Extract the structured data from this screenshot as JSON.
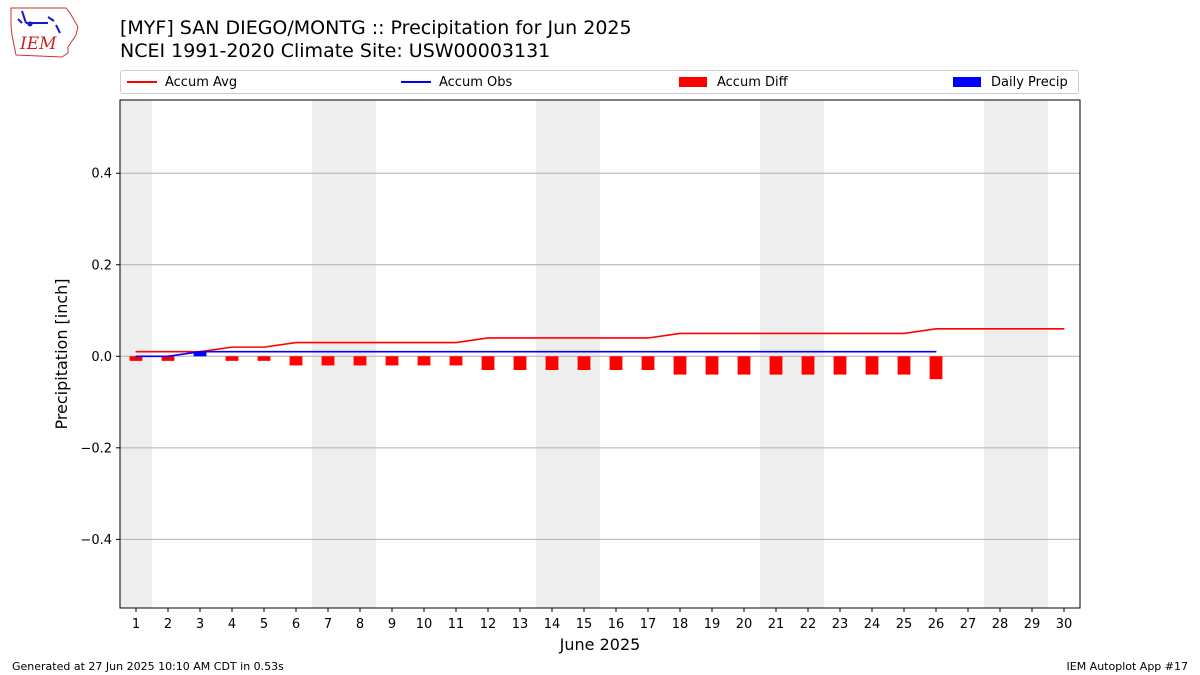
{
  "header": {
    "title_line1": "[MYF] SAN DIEGO/MONTG :: Precipitation for Jun 2025",
    "title_line2": "NCEI 1991-2020 Climate Site: USW00003131",
    "logo_text": "IEM"
  },
  "footer": {
    "generated": "Generated at 27 Jun 2025 10:10 AM CDT in 0.53s",
    "app": "IEM Autoplot App #17"
  },
  "colors": {
    "accum_avg": "#ff0000",
    "accum_obs": "#0000ff",
    "accum_diff": "#ff0000",
    "daily_precip": "#0000ff",
    "weekend": "#eeeeee",
    "grid": "#b0b0b0"
  },
  "legend": [
    {
      "label": "Accum Avg",
      "kind": "line",
      "color": "#ff0000"
    },
    {
      "label": "Accum Obs",
      "kind": "line",
      "color": "#0000ff"
    },
    {
      "label": "Accum Diff",
      "kind": "box",
      "color": "#ff0000"
    },
    {
      "label": "Daily Precip",
      "kind": "box",
      "color": "#0000ff"
    }
  ],
  "chart_data": {
    "type": "bar",
    "xlabel": "June 2025",
    "ylabel": "Precipitation [inch]",
    "xlim": [
      0.5,
      30.5
    ],
    "ylim": [
      -0.55,
      0.56
    ],
    "xticks": [
      1,
      2,
      3,
      4,
      5,
      6,
      7,
      8,
      9,
      10,
      11,
      12,
      13,
      14,
      15,
      16,
      17,
      18,
      19,
      20,
      21,
      22,
      23,
      24,
      25,
      26,
      27,
      28,
      29,
      30
    ],
    "yticks": [
      -0.4,
      -0.2,
      0.0,
      0.2,
      0.4
    ],
    "ytick_labels": [
      "−0.4",
      "−0.2",
      "0.0",
      "0.2",
      "0.4"
    ],
    "grid": "horizontal",
    "legend_position": "top",
    "weekend_shading": [
      [
        0.5,
        1.5
      ],
      [
        6.5,
        8.5
      ],
      [
        13.5,
        15.5
      ],
      [
        20.5,
        22.5
      ],
      [
        27.5,
        29.5
      ]
    ],
    "series": [
      {
        "name": "Accum Avg",
        "type": "line",
        "x": [
          1,
          2,
          3,
          4,
          5,
          6,
          7,
          8,
          9,
          10,
          11,
          12,
          13,
          14,
          15,
          16,
          17,
          18,
          19,
          20,
          21,
          22,
          23,
          24,
          25,
          26,
          27,
          28,
          29,
          30
        ],
        "values": [
          0.01,
          0.01,
          0.01,
          0.02,
          0.02,
          0.03,
          0.03,
          0.03,
          0.03,
          0.03,
          0.03,
          0.04,
          0.04,
          0.04,
          0.04,
          0.04,
          0.04,
          0.05,
          0.05,
          0.05,
          0.05,
          0.05,
          0.05,
          0.05,
          0.05,
          0.06,
          0.06,
          0.06,
          0.06,
          0.06
        ]
      },
      {
        "name": "Accum Obs",
        "type": "line",
        "x": [
          1,
          2,
          3,
          4,
          5,
          6,
          7,
          8,
          9,
          10,
          11,
          12,
          13,
          14,
          15,
          16,
          17,
          18,
          19,
          20,
          21,
          22,
          23,
          24,
          25,
          26
        ],
        "values": [
          0.0,
          0.0,
          0.01,
          0.01,
          0.01,
          0.01,
          0.01,
          0.01,
          0.01,
          0.01,
          0.01,
          0.01,
          0.01,
          0.01,
          0.01,
          0.01,
          0.01,
          0.01,
          0.01,
          0.01,
          0.01,
          0.01,
          0.01,
          0.01,
          0.01,
          0.01
        ]
      },
      {
        "name": "Accum Diff",
        "type": "bar",
        "x": [
          1,
          2,
          3,
          4,
          5,
          6,
          7,
          8,
          9,
          10,
          11,
          12,
          13,
          14,
          15,
          16,
          17,
          18,
          19,
          20,
          21,
          22,
          23,
          24,
          25,
          26
        ],
        "values": [
          -0.01,
          -0.01,
          0.0,
          -0.01,
          -0.01,
          -0.02,
          -0.02,
          -0.02,
          -0.02,
          -0.02,
          -0.02,
          -0.03,
          -0.03,
          -0.03,
          -0.03,
          -0.03,
          -0.03,
          -0.04,
          -0.04,
          -0.04,
          -0.04,
          -0.04,
          -0.04,
          -0.04,
          -0.04,
          -0.05
        ]
      },
      {
        "name": "Daily Precip",
        "type": "bar",
        "x": [
          1,
          2,
          3,
          4,
          5,
          6,
          7,
          8,
          9,
          10,
          11,
          12,
          13,
          14,
          15,
          16,
          17,
          18,
          19,
          20,
          21,
          22,
          23,
          24,
          25,
          26
        ],
        "values": [
          0.0,
          0.0,
          0.01,
          0.0,
          0.0,
          0.0,
          0.0,
          0.0,
          0.0,
          0.0,
          0.0,
          0.0,
          0.0,
          0.0,
          0.0,
          0.0,
          0.0,
          0.0,
          0.0,
          0.0,
          0.0,
          0.0,
          0.0,
          0.0,
          0.0,
          0.0
        ]
      }
    ]
  }
}
